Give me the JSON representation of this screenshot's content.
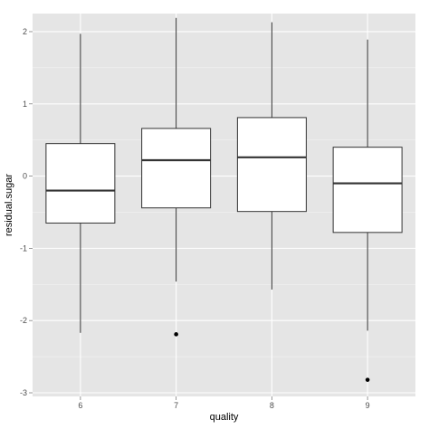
{
  "chart_data": {
    "type": "boxplot",
    "xlabel": "quality",
    "ylabel": "residual.sugar",
    "categories": [
      "6",
      "7",
      "8",
      "9"
    ],
    "ylim": [
      -3.05,
      2.25
    ],
    "yticks": [
      -3,
      -2,
      -1,
      0,
      1,
      2
    ],
    "ytick_labels": [
      "-3",
      "-2",
      "-1",
      "0",
      "1",
      "2"
    ],
    "grid": true,
    "legend": "none",
    "boxes": [
      {
        "category": "6",
        "whisker_low": -2.17,
        "q1": -0.65,
        "median": -0.2,
        "q3": 0.45,
        "whisker_high": 1.97,
        "outliers": []
      },
      {
        "category": "7",
        "whisker_low": -1.46,
        "q1": -0.44,
        "median": 0.22,
        "q3": 0.66,
        "whisker_high": 2.19,
        "outliers": [
          -2.19
        ]
      },
      {
        "category": "8",
        "whisker_low": -1.57,
        "q1": -0.49,
        "median": 0.26,
        "q3": 0.81,
        "whisker_high": 2.13,
        "outliers": []
      },
      {
        "category": "9",
        "whisker_low": -2.14,
        "q1": -0.78,
        "median": -0.1,
        "q3": 0.4,
        "whisker_high": 1.89,
        "outliers": [
          -2.82
        ]
      }
    ],
    "colors": {
      "panel_background": "#e5e5e5",
      "grid_major": "#ffffff",
      "grid_minor": "#f2f2f2",
      "box_fill": "#ffffff",
      "box_line": "#333333",
      "outlier": "#000000",
      "tick_text": "#4d4d4d"
    }
  }
}
